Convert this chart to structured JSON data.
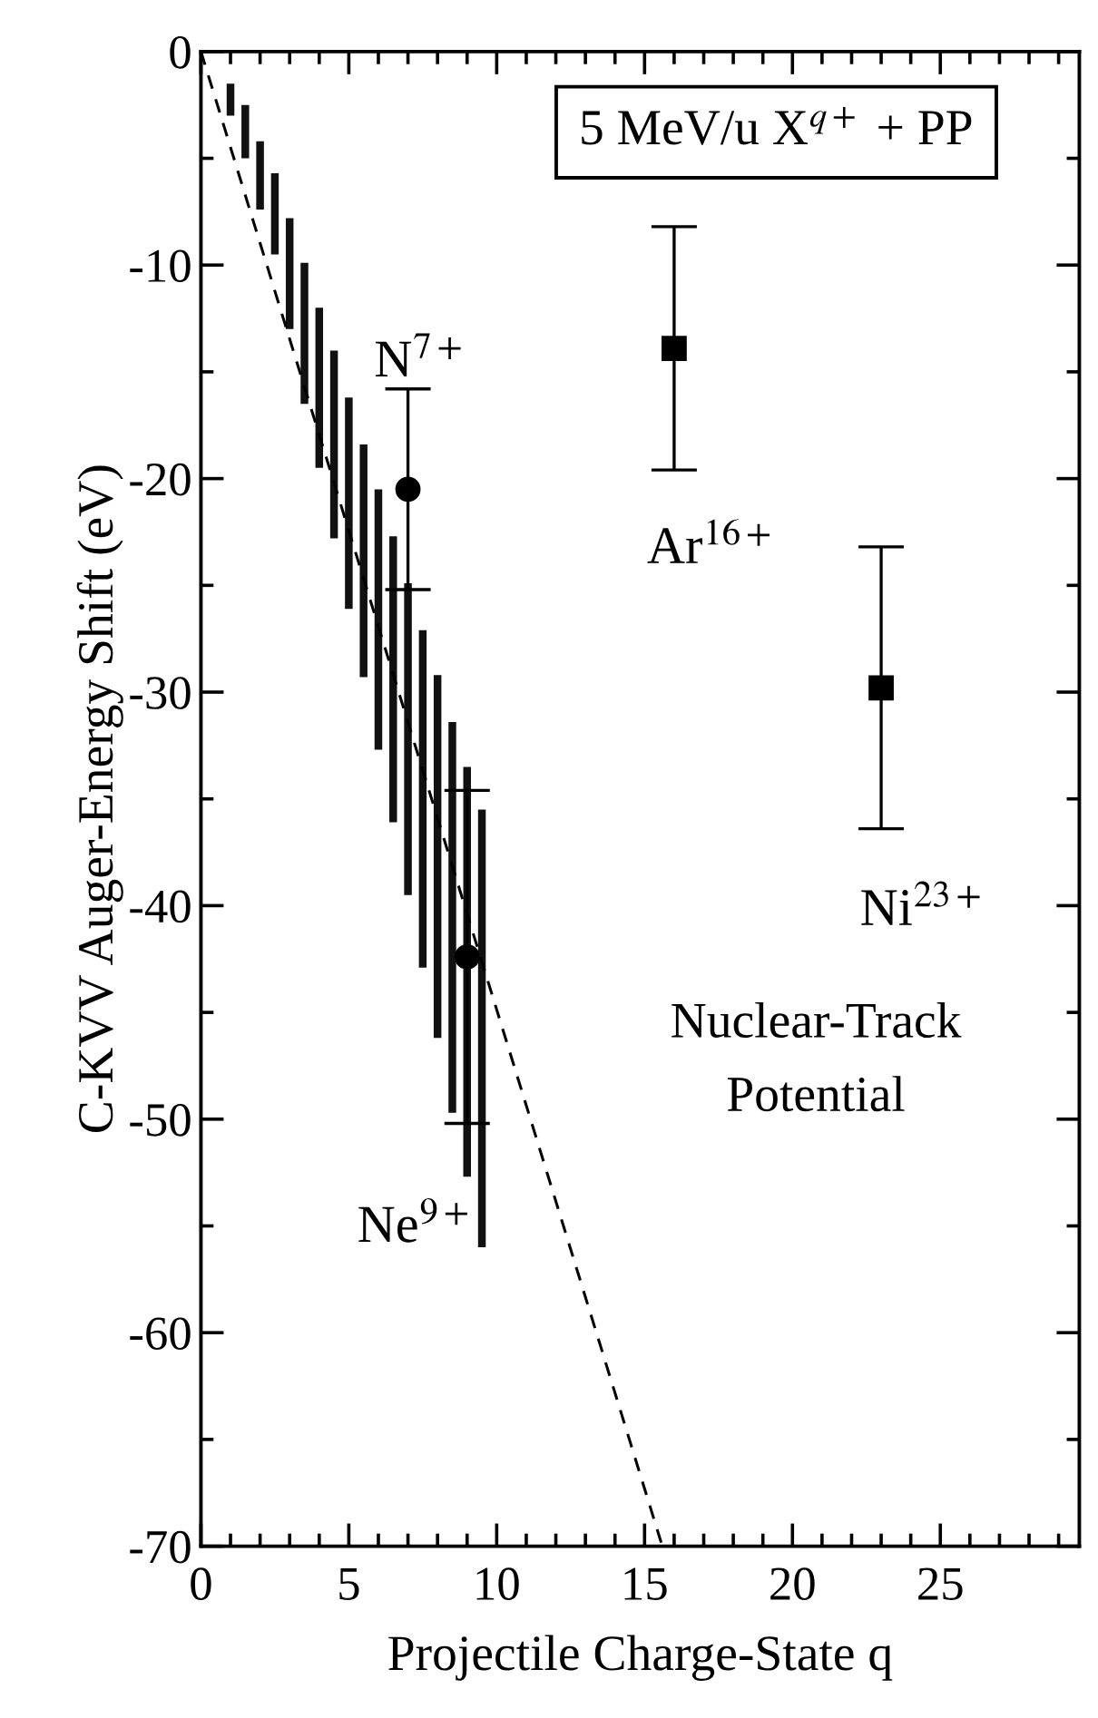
{
  "chart_data": {
    "type": "scatter",
    "xlabel": "Projectile Charge-State q",
    "ylabel": "C-KVV Auger-Energy Shift (eV)",
    "xlim": [
      0,
      29.7
    ],
    "ylim": [
      -70,
      0
    ],
    "xticks": [
      0,
      5,
      10,
      15,
      20,
      25
    ],
    "yticks": [
      0,
      -10,
      -20,
      -30,
      -40,
      -50,
      -60,
      -70
    ],
    "grid": false,
    "series": [
      {
        "type": "bar",
        "color": "#111111",
        "x": [
          1,
          1.5,
          2,
          2.5,
          3,
          3.5,
          4,
          4.5,
          5,
          5.5,
          6,
          6.5,
          7,
          7.5,
          8,
          8.5,
          9,
          9.5
        ],
        "base": [
          -1.5,
          -2.5,
          -4.2,
          -5.7,
          -7.8,
          -9.9,
          -12,
          -14,
          -16.2,
          -18.4,
          -20.5,
          -22.7,
          -24.9,
          -27.1,
          -29.2,
          -31.4,
          -33.5,
          -35.5
        ],
        "values": [
          -1.5,
          -2.5,
          -3.2,
          -3.8,
          -5.2,
          -6.6,
          -7.5,
          -8.8,
          -9.9,
          -10.9,
          -12.2,
          -13.4,
          -14.6,
          -15.8,
          -17,
          -18.3,
          -19.2,
          -20.5
        ]
      },
      {
        "type": "line",
        "color": "#000000",
        "line_style": "dashed",
        "marker": "none",
        "x": [
          0,
          15.6
        ],
        "values": [
          0,
          -70
        ]
      },
      {
        "color": "#000000",
        "marker": "circle",
        "x": [
          7,
          9
        ],
        "values": [
          -20.5,
          -42.4
        ],
        "errors": [
          4.7,
          7.8
        ]
      },
      {
        "color": "#000000",
        "marker": "square",
        "x": [
          16,
          23
        ],
        "values": [
          -13.9,
          -29.8
        ],
        "errors": [
          5.7,
          6.6
        ]
      }
    ],
    "annotations": [
      "5 MeV/u X$^{q+}$ + PP",
      "N$^{7+}$",
      "Ne$^{9+}$",
      "Ar$^{16+}$",
      "Ni$^{23+}$",
      "Nuclear-Track\nPotential"
    ]
  }
}
